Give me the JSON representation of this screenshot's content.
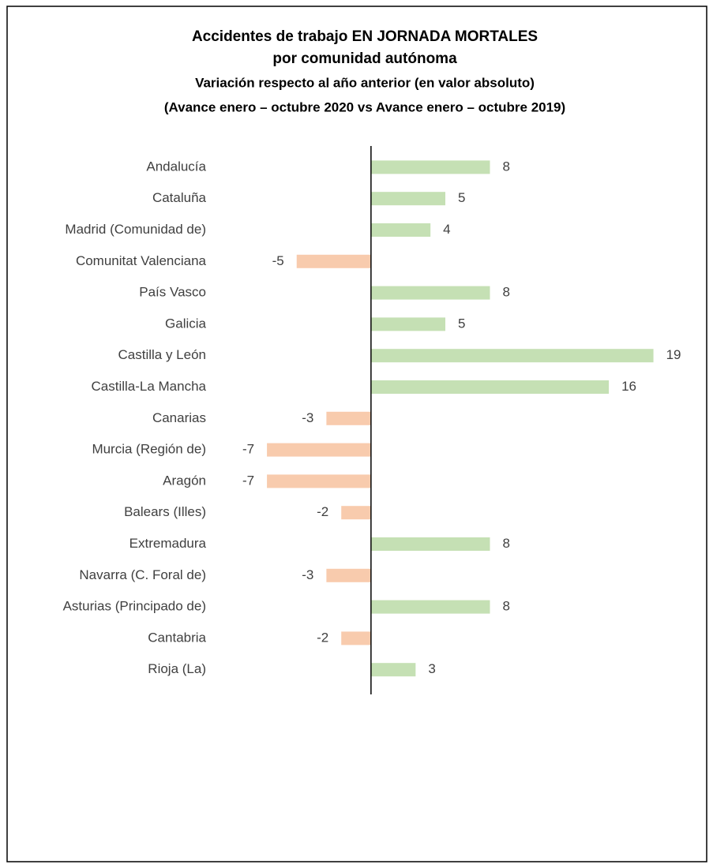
{
  "chart_data": {
    "type": "hbar",
    "title": [
      "Accidentes de trabajo EN JORNADA MORTALES",
      "por comunidad autónoma"
    ],
    "subtitle": [
      "Variación respecto al año anterior (en valor absoluto)",
      "(Avance enero – octubre 2020 vs Avance enero – octubre 2019)"
    ],
    "categories": [
      "Andalucía",
      "Cataluña",
      "Madrid (Comunidad de)",
      "Comunitat Valenciana",
      "País Vasco",
      "Galicia",
      "Castilla y León",
      "Castilla-La Mancha",
      "Canarias",
      "Murcia (Región de)",
      "Aragón",
      "Balears (Illes)",
      "Extremadura",
      "Navarra (C. Foral de)",
      "Asturias (Principado de)",
      "Cantabria",
      "Rioja (La)"
    ],
    "values": [
      8,
      5,
      4,
      -5,
      8,
      5,
      19,
      16,
      -3,
      -7,
      -7,
      -2,
      8,
      -3,
      8,
      -2,
      3
    ],
    "positive_color": "#c5e0b4",
    "negative_color": "#f8cbad",
    "xlim": [
      -10,
      20
    ]
  }
}
